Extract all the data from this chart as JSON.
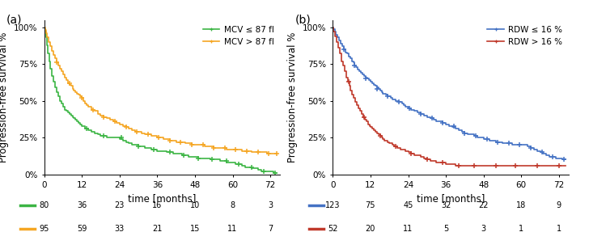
{
  "panel_a": {
    "label": "(a)",
    "legend_labels": [
      "MCV ≤ 87 fl",
      "MCV > 87 fl"
    ],
    "colors": [
      "#3cb544",
      "#f5a623"
    ],
    "at_risk_labels": [
      [
        80,
        36,
        23,
        16,
        10,
        8,
        3
      ],
      [
        95,
        59,
        33,
        21,
        15,
        11,
        7
      ]
    ],
    "curve1": {
      "times": [
        0,
        0.2,
        0.5,
        0.8,
        1.2,
        1.6,
        2.0,
        2.5,
        3.0,
        3.5,
        4.0,
        4.5,
        5.0,
        5.5,
        6.0,
        6.5,
        7.0,
        7.5,
        8.0,
        8.5,
        9.0,
        9.5,
        10.0,
        10.5,
        11.0,
        11.5,
        12.0,
        13.0,
        14.0,
        15.0,
        16.0,
        17.0,
        18.0,
        19.0,
        20.0,
        21.0,
        22.0,
        23.0,
        24.0,
        25.0,
        26.0,
        27.0,
        28.0,
        29.0,
        30.0,
        31.0,
        32.0,
        33.0,
        34.0,
        35.0,
        36.0,
        37.0,
        38.0,
        39.0,
        40.0,
        41.0,
        42.0,
        43.0,
        44.0,
        45.0,
        46.0,
        47.0,
        48.0,
        49.0,
        50.0,
        51.0,
        52.0,
        53.0,
        54.0,
        55.0,
        56.0,
        57.0,
        58.0,
        59.0,
        60.0,
        61.0,
        62.0,
        63.0,
        64.0,
        65.0,
        66.0,
        67.0,
        68.0,
        69.0,
        70.0,
        71.0,
        72.0,
        73.0,
        74.0
      ],
      "surv": [
        1.0,
        0.97,
        0.93,
        0.88,
        0.82,
        0.77,
        0.72,
        0.67,
        0.63,
        0.59,
        0.56,
        0.53,
        0.5,
        0.48,
        0.46,
        0.44,
        0.43,
        0.42,
        0.41,
        0.4,
        0.39,
        0.38,
        0.37,
        0.36,
        0.35,
        0.34,
        0.33,
        0.31,
        0.3,
        0.29,
        0.28,
        0.27,
        0.26,
        0.26,
        0.25,
        0.25,
        0.25,
        0.25,
        0.24,
        0.23,
        0.22,
        0.21,
        0.2,
        0.2,
        0.19,
        0.19,
        0.18,
        0.18,
        0.17,
        0.17,
        0.16,
        0.16,
        0.16,
        0.15,
        0.15,
        0.14,
        0.14,
        0.14,
        0.13,
        0.13,
        0.12,
        0.12,
        0.12,
        0.11,
        0.11,
        0.11,
        0.11,
        0.1,
        0.1,
        0.1,
        0.09,
        0.09,
        0.08,
        0.08,
        0.08,
        0.07,
        0.07,
        0.06,
        0.05,
        0.05,
        0.04,
        0.04,
        0.03,
        0.02,
        0.02,
        0.02,
        0.02,
        0.01,
        0.01
      ],
      "censor_times": [
        13.5,
        19.0,
        24.5,
        30.0,
        35.0,
        40.0,
        44.5,
        49.0,
        53.5,
        58.0,
        62.0,
        66.0,
        70.0,
        73.5
      ],
      "censor_surv": [
        0.31,
        0.26,
        0.25,
        0.19,
        0.17,
        0.15,
        0.13,
        0.11,
        0.1,
        0.09,
        0.07,
        0.05,
        0.02,
        0.01
      ]
    },
    "curve2": {
      "times": [
        0,
        0.3,
        0.6,
        1.0,
        1.5,
        2.0,
        2.5,
        3.0,
        3.5,
        4.0,
        4.5,
        5.0,
        5.5,
        6.0,
        6.5,
        7.0,
        7.5,
        8.0,
        8.5,
        9.0,
        9.5,
        10.0,
        10.5,
        11.0,
        11.5,
        12.0,
        12.5,
        13.0,
        13.5,
        14.0,
        15.0,
        16.0,
        17.0,
        18.0,
        19.0,
        20.0,
        21.0,
        22.0,
        23.0,
        24.0,
        25.0,
        26.0,
        27.0,
        28.0,
        29.0,
        30.0,
        31.0,
        32.0,
        33.0,
        34.0,
        35.0,
        36.0,
        37.0,
        38.0,
        39.0,
        40.0,
        41.0,
        42.0,
        43.0,
        44.0,
        45.0,
        46.0,
        47.0,
        48.0,
        49.0,
        50.0,
        51.0,
        52.0,
        53.0,
        54.0,
        55.0,
        56.0,
        57.0,
        58.0,
        59.0,
        60.0,
        61.0,
        62.0,
        63.0,
        64.0,
        65.0,
        66.0,
        67.0,
        68.0,
        69.0,
        70.0,
        71.0,
        72.0,
        73.0,
        74.0
      ],
      "surv": [
        1.0,
        0.98,
        0.96,
        0.93,
        0.9,
        0.87,
        0.84,
        0.81,
        0.79,
        0.76,
        0.74,
        0.72,
        0.7,
        0.68,
        0.66,
        0.64,
        0.62,
        0.61,
        0.6,
        0.58,
        0.57,
        0.56,
        0.55,
        0.54,
        0.53,
        0.52,
        0.5,
        0.48,
        0.47,
        0.46,
        0.44,
        0.43,
        0.41,
        0.4,
        0.39,
        0.38,
        0.37,
        0.36,
        0.35,
        0.34,
        0.33,
        0.32,
        0.31,
        0.3,
        0.29,
        0.29,
        0.28,
        0.27,
        0.27,
        0.26,
        0.26,
        0.25,
        0.25,
        0.24,
        0.24,
        0.23,
        0.23,
        0.22,
        0.22,
        0.22,
        0.21,
        0.21,
        0.2,
        0.2,
        0.2,
        0.2,
        0.19,
        0.19,
        0.19,
        0.18,
        0.18,
        0.18,
        0.18,
        0.17,
        0.17,
        0.17,
        0.17,
        0.17,
        0.16,
        0.16,
        0.16,
        0.15,
        0.15,
        0.15,
        0.15,
        0.15,
        0.14,
        0.14,
        0.14,
        0.14
      ],
      "censor_times": [
        4.0,
        8.0,
        12.0,
        15.5,
        19.0,
        22.5,
        26.0,
        29.5,
        33.0,
        36.5,
        40.0,
        43.5,
        47.0,
        50.5,
        54.0,
        57.5,
        61.0,
        64.5,
        68.0,
        71.5,
        74.0
      ],
      "censor_surv": [
        0.76,
        0.62,
        0.52,
        0.44,
        0.39,
        0.36,
        0.32,
        0.29,
        0.27,
        0.25,
        0.23,
        0.22,
        0.2,
        0.2,
        0.18,
        0.18,
        0.17,
        0.16,
        0.15,
        0.14,
        0.14
      ]
    }
  },
  "panel_b": {
    "label": "(b)",
    "legend_labels": [
      "RDW ≤ 16 %",
      "RDW > 16 %"
    ],
    "colors": [
      "#4472c4",
      "#c0392b"
    ],
    "at_risk_labels": [
      [
        123,
        75,
        45,
        32,
        22,
        18,
        9
      ],
      [
        52,
        20,
        11,
        5,
        3,
        1,
        1
      ]
    ],
    "curve1": {
      "times": [
        0,
        0.3,
        0.6,
        1.0,
        1.5,
        2.0,
        2.5,
        3.0,
        3.5,
        4.0,
        4.5,
        5.0,
        5.5,
        6.0,
        6.5,
        7.0,
        7.5,
        8.0,
        8.5,
        9.0,
        9.5,
        10.0,
        10.5,
        11.0,
        11.5,
        12.0,
        12.5,
        13.0,
        13.5,
        14.0,
        14.5,
        15.0,
        15.5,
        16.0,
        16.5,
        17.0,
        17.5,
        18.0,
        18.5,
        19.0,
        19.5,
        20.0,
        20.5,
        21.0,
        21.5,
        22.0,
        22.5,
        23.0,
        24.0,
        25.0,
        26.0,
        27.0,
        28.0,
        29.0,
        30.0,
        31.0,
        32.0,
        33.0,
        34.0,
        35.0,
        36.0,
        37.0,
        38.0,
        39.0,
        40.0,
        41.0,
        42.0,
        43.0,
        44.0,
        45.0,
        46.0,
        47.0,
        48.0,
        49.0,
        50.0,
        51.0,
        52.0,
        53.0,
        54.0,
        55.0,
        56.0,
        57.0,
        58.0,
        59.0,
        60.0,
        61.0,
        62.0,
        63.0,
        64.0,
        65.0,
        66.0,
        67.0,
        68.0,
        69.0,
        70.0,
        71.0,
        72.0,
        73.0,
        74.0
      ],
      "surv": [
        1.0,
        0.99,
        0.97,
        0.95,
        0.93,
        0.91,
        0.89,
        0.87,
        0.85,
        0.83,
        0.82,
        0.8,
        0.79,
        0.77,
        0.76,
        0.74,
        0.73,
        0.71,
        0.7,
        0.69,
        0.68,
        0.67,
        0.66,
        0.65,
        0.64,
        0.63,
        0.62,
        0.61,
        0.6,
        0.59,
        0.58,
        0.57,
        0.56,
        0.55,
        0.55,
        0.54,
        0.53,
        0.53,
        0.52,
        0.51,
        0.51,
        0.5,
        0.5,
        0.49,
        0.49,
        0.48,
        0.47,
        0.46,
        0.45,
        0.44,
        0.43,
        0.42,
        0.41,
        0.4,
        0.39,
        0.38,
        0.37,
        0.36,
        0.36,
        0.35,
        0.34,
        0.33,
        0.32,
        0.31,
        0.3,
        0.29,
        0.28,
        0.27,
        0.27,
        0.26,
        0.25,
        0.25,
        0.24,
        0.24,
        0.23,
        0.23,
        0.22,
        0.22,
        0.21,
        0.21,
        0.21,
        0.2,
        0.2,
        0.2,
        0.2,
        0.2,
        0.19,
        0.18,
        0.17,
        0.16,
        0.15,
        0.14,
        0.13,
        0.12,
        0.12,
        0.11,
        0.11,
        0.1,
        0.1
      ],
      "censor_times": [
        3.5,
        7.0,
        10.5,
        14.0,
        17.5,
        21.0,
        24.5,
        28.0,
        31.5,
        35.0,
        38.5,
        42.0,
        45.5,
        49.0,
        52.5,
        56.0,
        59.5,
        63.0,
        66.5,
        70.0,
        73.5
      ],
      "censor_surv": [
        0.85,
        0.74,
        0.65,
        0.58,
        0.53,
        0.49,
        0.45,
        0.41,
        0.38,
        0.35,
        0.33,
        0.28,
        0.26,
        0.24,
        0.22,
        0.21,
        0.2,
        0.18,
        0.15,
        0.12,
        0.1
      ]
    },
    "curve2": {
      "times": [
        0,
        0.3,
        0.7,
        1.2,
        1.7,
        2.2,
        2.7,
        3.2,
        3.7,
        4.2,
        4.7,
        5.2,
        5.7,
        6.2,
        6.7,
        7.2,
        7.7,
        8.2,
        8.7,
        9.2,
        9.7,
        10.2,
        10.7,
        11.2,
        11.7,
        12.0,
        12.5,
        13.0,
        13.5,
        14.0,
        14.5,
        15.0,
        15.5,
        16.0,
        16.5,
        17.0,
        17.5,
        18.0,
        18.5,
        19.0,
        19.5,
        20.0,
        20.5,
        21.0,
        21.5,
        22.0,
        22.5,
        23.0,
        24.0,
        25.0,
        26.0,
        27.0,
        28.0,
        29.0,
        30.0,
        31.0,
        32.0,
        33.0,
        34.0,
        35.0,
        36.0,
        37.0,
        38.0,
        39.0,
        40.0,
        41.0,
        42.0,
        43.0,
        44.0,
        45.0,
        46.0,
        47.0,
        48.0,
        49.0,
        50.0,
        55.0,
        60.0,
        65.0,
        70.0,
        72.0,
        74.0
      ],
      "surv": [
        1.0,
        0.97,
        0.94,
        0.9,
        0.86,
        0.82,
        0.77,
        0.74,
        0.7,
        0.66,
        0.63,
        0.6,
        0.57,
        0.54,
        0.52,
        0.49,
        0.47,
        0.45,
        0.43,
        0.41,
        0.39,
        0.37,
        0.36,
        0.34,
        0.33,
        0.32,
        0.31,
        0.3,
        0.29,
        0.28,
        0.27,
        0.26,
        0.25,
        0.24,
        0.23,
        0.23,
        0.22,
        0.21,
        0.21,
        0.2,
        0.19,
        0.19,
        0.18,
        0.18,
        0.17,
        0.17,
        0.17,
        0.16,
        0.15,
        0.14,
        0.13,
        0.13,
        0.12,
        0.11,
        0.1,
        0.09,
        0.09,
        0.08,
        0.08,
        0.08,
        0.07,
        0.07,
        0.07,
        0.06,
        0.06,
        0.06,
        0.06,
        0.06,
        0.06,
        0.06,
        0.06,
        0.06,
        0.06,
        0.06,
        0.06,
        0.06,
        0.06,
        0.06,
        0.06,
        0.06,
        0.06
      ],
      "censor_times": [
        5.0,
        10.0,
        15.0,
        20.0,
        25.0,
        30.0,
        35.0,
        40.0,
        45.0,
        52.0,
        58.0,
        65.0,
        72.0
      ],
      "censor_surv": [
        0.63,
        0.39,
        0.26,
        0.19,
        0.14,
        0.1,
        0.08,
        0.06,
        0.06,
        0.06,
        0.06,
        0.06,
        0.06
      ]
    }
  },
  "ylabel": "Progression-free survival %",
  "xlabel": "time [months]",
  "yticks": [
    0,
    25,
    50,
    75,
    100
  ],
  "ytick_labels": [
    "0%",
    "25%",
    "50%",
    "75%",
    "100%"
  ],
  "xticks": [
    0,
    12,
    24,
    36,
    48,
    60,
    72
  ],
  "xlim": [
    0,
    75
  ],
  "ylim": [
    0,
    1.05
  ],
  "linewidth": 1.2,
  "censor_marker": "+",
  "censor_markersize": 5,
  "censor_markeredge": 1.1,
  "at_risk_fontsize": 7.0,
  "legend_fontsize": 7.5,
  "axis_label_fontsize": 8.5,
  "tick_fontsize": 7.5,
  "at_risk_times": [
    0,
    12,
    24,
    36,
    48,
    60,
    72
  ]
}
